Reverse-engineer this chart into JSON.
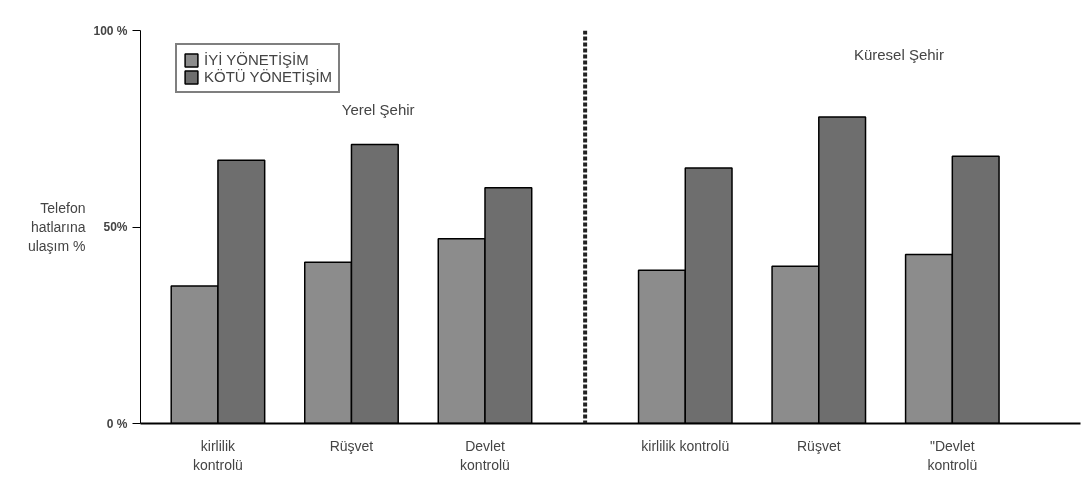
{
  "chart_data": {
    "type": "bar",
    "ylabel": "Telefon\nhatlarına\nulaşım %",
    "categories": [
      "kirlilik\nkontrolü",
      "Rüşvet",
      "Devlet\nkontrolü",
      "kirlilik kontrolü",
      "Rüşvet",
      "\"Devlet\nkontrolü"
    ],
    "series": [
      {
        "name": "İYİ YÖNETİŞİM",
        "color": "#8c8c8c",
        "values": [
          35,
          41,
          47,
          39,
          40,
          43
        ]
      },
      {
        "name": "KÖTÜ YÖNETİŞİM",
        "color": "#6e6e6e",
        "values": [
          67,
          71,
          60,
          65,
          78,
          68
        ]
      }
    ],
    "ylim": [
      0,
      100
    ],
    "yticks": [
      {
        "value": 0,
        "label": "0 %"
      },
      {
        "value": 50,
        "label": "50%"
      },
      {
        "value": 100,
        "label": "100 %"
      }
    ],
    "annotations": [
      "Yerel Şehir",
      "Küresel Şehir"
    ],
    "legend": "top left",
    "grid": false
  }
}
